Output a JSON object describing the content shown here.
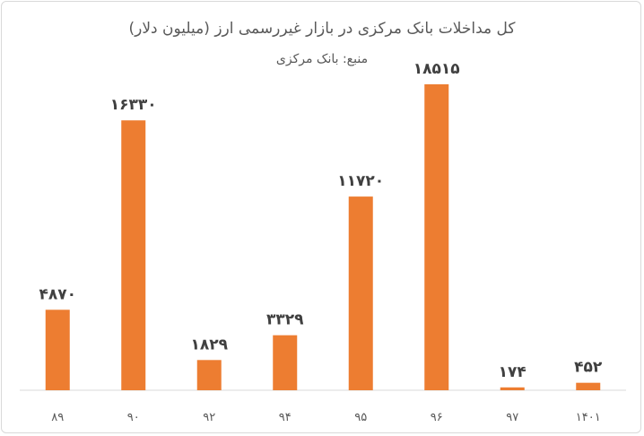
{
  "chart_data": {
    "type": "bar",
    "title": "کل مداخلات بانک مرکزی در بازار غیررسمی ارز (میلیون دلار)",
    "subtitle": "منبع: بانک مرکزی",
    "categories": [
      "۸۹",
      "۹۰",
      "۹۲",
      "۹۴",
      "۹۵",
      "۹۶",
      "۹۷",
      "۱۴۰۱"
    ],
    "values": [
      4870,
      16330,
      1829,
      3329,
      11720,
      18515,
      174,
      452
    ],
    "data_labels": [
      "۴۸۷۰",
      "۱۶۳۳۰",
      "۱۸۲۹",
      "۳۳۲۹",
      "۱۱۷۲۰",
      "۱۸۵۱۵",
      "۱۷۴",
      "۴۵۲"
    ],
    "xlabel": "",
    "ylabel": "",
    "ylim": [
      0,
      19000
    ],
    "grid": false,
    "legend": "none",
    "colors": {
      "bar": "#ED7D31",
      "axis": "#d9d9d9",
      "text": "#595959"
    }
  }
}
